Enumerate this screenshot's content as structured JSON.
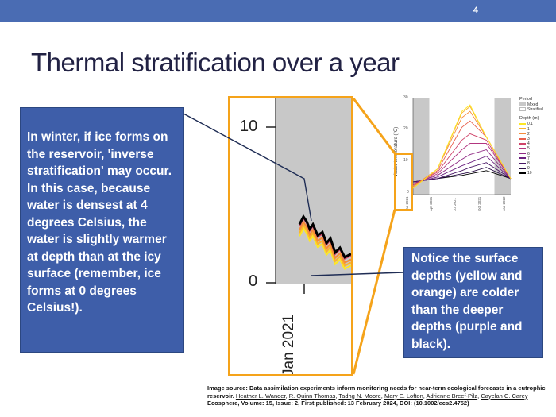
{
  "slide": {
    "number": "4",
    "title": "Thermal stratification over a year"
  },
  "callouts": {
    "left": "In winter, if ice forms on the reservoir, 'inverse stratification' may occur. In this case, because water is densest at 4 degrees Celsius, the water is slightly warmer at depth than at the icy surface (remember, ice forms at 0 degrees Celsius!).",
    "right": "Notice the surface depths (yellow and orange) are colder than the deeper depths (purple and black)."
  },
  "zoom_panel": {
    "y_ticks": [
      "10",
      "0"
    ],
    "x_label": "Jan 2021"
  },
  "chart_data": {
    "type": "line",
    "ylabel": "Water temperature (°C)",
    "y_ticks": [
      "30",
      "20",
      "10",
      "0"
    ],
    "ylim": [
      0,
      30
    ],
    "x_ticks": [
      "Jan 2021",
      "Apr 2021",
      "Jul 2021",
      "Oct 2021",
      "Jan 2022"
    ],
    "legend": {
      "period_title": "Period",
      "period_items": [
        "Mixed",
        "Stratified"
      ],
      "depth_title": "Depth (m)",
      "depth_items": [
        "0.1",
        "1",
        "2",
        "3",
        "4",
        "5",
        "6",
        "7",
        "8",
        "9",
        "10"
      ]
    },
    "colors": {
      "mixed": "#c8c8c8",
      "stratified": "#ffffff",
      "depths": [
        "#fde725",
        "#fbb42d",
        "#f68b3a",
        "#e8604c",
        "#cf4469",
        "#b2367f",
        "#8f2a84",
        "#6c2180",
        "#491766",
        "#2a0e47",
        "#000000"
      ]
    },
    "series": [
      {
        "name": "0.1",
        "x": [
          "Jan 2021",
          "Apr 2021",
          "Jul 2021",
          "Aug 2021",
          "Oct 2021",
          "Jan 2022"
        ],
        "y": [
          2,
          8,
          26,
          28,
          18,
          5
        ]
      },
      {
        "name": "1",
        "x": [
          "Jan 2021",
          "Apr 2021",
          "Jul 2021",
          "Aug 2021",
          "Oct 2021",
          "Jan 2022"
        ],
        "y": [
          2,
          8,
          25.5,
          27.5,
          18,
          5
        ]
      },
      {
        "name": "2",
        "x": [
          "Jan 2021",
          "Apr 2021",
          "Jul 2021",
          "Aug 2021",
          "Oct 2021",
          "Jan 2022"
        ],
        "y": [
          2.5,
          8,
          24,
          26,
          18,
          5
        ]
      },
      {
        "name": "3",
        "x": [
          "Jan 2021",
          "Apr 2021",
          "Jul 2021",
          "Aug 2021",
          "Oct 2021",
          "Jan 2022"
        ],
        "y": [
          2.5,
          7.5,
          21,
          23,
          18,
          5
        ]
      },
      {
        "name": "4",
        "x": [
          "Jan 2021",
          "Apr 2021",
          "Jul 2021",
          "Aug 2021",
          "Oct 2021",
          "Jan 2022"
        ],
        "y": [
          3,
          7,
          17,
          19,
          17,
          5
        ]
      },
      {
        "name": "5",
        "x": [
          "Jan 2021",
          "Apr 2021",
          "Jul 2021",
          "Aug 2021",
          "Oct 2021",
          "Jan 2022"
        ],
        "y": [
          3,
          6.5,
          14,
          16,
          16,
          5
        ]
      },
      {
        "name": "6",
        "x": [
          "Jan 2021",
          "Apr 2021",
          "Jul 2021",
          "Aug 2021",
          "Oct 2021",
          "Jan 2022"
        ],
        "y": [
          3.5,
          6,
          11,
          12.5,
          14,
          5
        ]
      },
      {
        "name": "7",
        "x": [
          "Jan 2021",
          "Apr 2021",
          "Jul 2021",
          "Aug 2021",
          "Oct 2021",
          "Jan 2022"
        ],
        "y": [
          3.5,
          5.5,
          9,
          10,
          12,
          5
        ]
      },
      {
        "name": "8",
        "x": [
          "Jan 2021",
          "Apr 2021",
          "Jul 2021",
          "Aug 2021",
          "Oct 2021",
          "Jan 2022"
        ],
        "y": [
          4,
          5,
          7.5,
          8.5,
          10,
          5
        ]
      },
      {
        "name": "9",
        "x": [
          "Jan 2021",
          "Apr 2021",
          "Jul 2021",
          "Aug 2021",
          "Oct 2021",
          "Jan 2022"
        ],
        "y": [
          4,
          5,
          6.5,
          7,
          8.5,
          5
        ]
      },
      {
        "name": "10",
        "x": [
          "Jan 2021",
          "Apr 2021",
          "Jul 2021",
          "Aug 2021",
          "Oct 2021",
          "Jan 2022"
        ],
        "y": [
          4,
          5,
          6,
          6.5,
          7.5,
          5
        ]
      }
    ],
    "periods": [
      {
        "name": "Mixed",
        "from": "Jan 2021",
        "to": "Mar 2021"
      },
      {
        "name": "Stratified",
        "from": "Mar 2021",
        "to": "Nov 2021"
      },
      {
        "name": "Mixed",
        "from": "Nov 2021",
        "to": "Jan 2022"
      }
    ]
  },
  "source": {
    "line1_prefix": "Image source: ",
    "line1_bold": "Data assimilation experiments inform monitoring needs for near-term ecological forecasts in a eutrophic reservoir.",
    "authors": [
      "Heather L. Wander",
      "R. Quinn Thomas",
      "Tadhg N. Moore",
      "Mary E. Lofton",
      "Adrienne Breef-Pilz",
      "Cayelan C. Carey"
    ],
    "line3": "Ecosphere, Volume: 15, Issue: 2, First published: 13 February 2024, DOI: (10.1002/ecs2.4752)"
  }
}
